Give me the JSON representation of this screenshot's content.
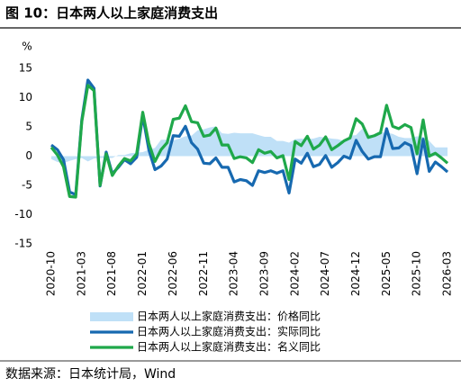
{
  "chart_data": {
    "type": "line",
    "title": "图 10：日本两人以上家庭消费支出",
    "y_label": "%",
    "source": "数据来源：日本统计局，Wind",
    "categories": [
      "2020-10",
      null,
      null,
      null,
      null,
      "2021-03",
      null,
      null,
      null,
      null,
      "2021-08",
      null,
      null,
      null,
      null,
      "2022-01",
      null,
      null,
      null,
      null,
      "2022-06",
      null,
      null,
      null,
      null,
      "2022-11",
      null,
      null,
      null,
      null,
      "2023-04",
      null,
      null,
      null,
      null,
      "2023-09",
      null,
      null,
      null,
      null,
      "2024-02",
      null,
      null,
      null,
      null,
      "2024-07",
      null,
      null,
      null,
      null,
      "2024-12",
      null,
      null,
      null,
      null,
      "2025-05",
      null,
      null,
      null,
      null,
      "2025-10",
      null,
      null,
      null,
      null,
      "2026-03"
    ],
    "series": [
      {
        "name": "日本两人以上家庭消费支出：价格同比",
        "kind": "area",
        "color": "#bfe0f7",
        "values": [
          -0.5,
          -1,
          -1.2,
          -0.8,
          -0.5,
          -0.3,
          -0.9,
          -0.4,
          -0.3,
          -0.3,
          -0.3,
          0.2,
          0.2,
          0.5,
          0.6,
          0.7,
          1.1,
          1.4,
          2.8,
          2.8,
          2.7,
          3.0,
          3.4,
          3.5,
          4.4,
          4.6,
          4.9,
          5.1,
          3.9,
          3.8,
          4.0,
          3.9,
          3.9,
          3.9,
          3.6,
          3.3,
          3.3,
          2.6,
          2.6,
          2.3,
          2.9,
          3.0,
          2.9,
          3.0,
          3.3,
          3.2,
          3.0,
          2.9,
          2.6,
          3.5,
          3.6,
          4.7,
          3.7,
          3.6,
          4.1,
          4.0,
          3.8,
          3.3,
          3.1,
          3.1,
          3.4,
          3.3,
          2.6,
          1.5,
          1.5,
          1.5
        ]
      },
      {
        "name": "日本两人以上家庭消费支出：实际同比",
        "kind": "line",
        "color": "#1769b0",
        "values": [
          1.9,
          1.1,
          -0.6,
          -6.1,
          -6.6,
          6.2,
          13.0,
          11.6,
          -5.1,
          0.7,
          -3.0,
          -1.9,
          -0.6,
          -1.3,
          -0.2,
          6.9,
          1.1,
          -2.3,
          -1.7,
          -0.5,
          3.5,
          3.4,
          5.1,
          2.3,
          1.2,
          -1.2,
          -1.3,
          -0.3,
          -1.9,
          -1.9,
          -4.4,
          -4.0,
          -4.2,
          -5.0,
          -2.5,
          -2.8,
          -2.5,
          -2.9,
          -2.5,
          -6.3,
          -0.5,
          -1.2,
          0.5,
          -1.8,
          -1.4,
          0.1,
          -1.9,
          -1.1,
          0.0,
          -0.4,
          2.7,
          0.8,
          -0.5,
          -0.1,
          -0.1,
          4.7,
          1.3,
          1.4,
          2.3,
          1.8,
          -3.0,
          2.9,
          -2.6,
          -1.0,
          -1.8,
          -2.7
        ]
      },
      {
        "name": "日本两人以上家庭消费支出：名义同比",
        "kind": "line",
        "color": "#1fa84a",
        "values": [
          1.5,
          0.2,
          -1.8,
          -6.9,
          -7.0,
          5.9,
          12.1,
          11.2,
          -5.0,
          0.4,
          -3.3,
          -1.7,
          -0.4,
          -0.8,
          0.4,
          7.5,
          2.2,
          -0.9,
          1.1,
          2.3,
          6.3,
          6.5,
          8.6,
          5.9,
          5.7,
          3.4,
          3.6,
          4.8,
          1.9,
          1.9,
          -0.4,
          -0.1,
          -0.3,
          -1.1,
          1.1,
          0.5,
          0.8,
          -0.3,
          0.1,
          -4.0,
          2.5,
          1.8,
          3.4,
          1.2,
          1.9,
          3.3,
          1.1,
          1.8,
          2.6,
          3.1,
          6.4,
          5.5,
          3.2,
          3.5,
          4.0,
          8.7,
          5.1,
          4.7,
          5.4,
          4.9,
          0.4,
          6.2,
          0.0,
          0.5,
          -0.3,
          -1.2
        ]
      }
    ],
    "ylim": [
      -15,
      15
    ],
    "yticks": [
      -15,
      -10,
      -5,
      0,
      5,
      10,
      15
    ],
    "grid": false
  }
}
